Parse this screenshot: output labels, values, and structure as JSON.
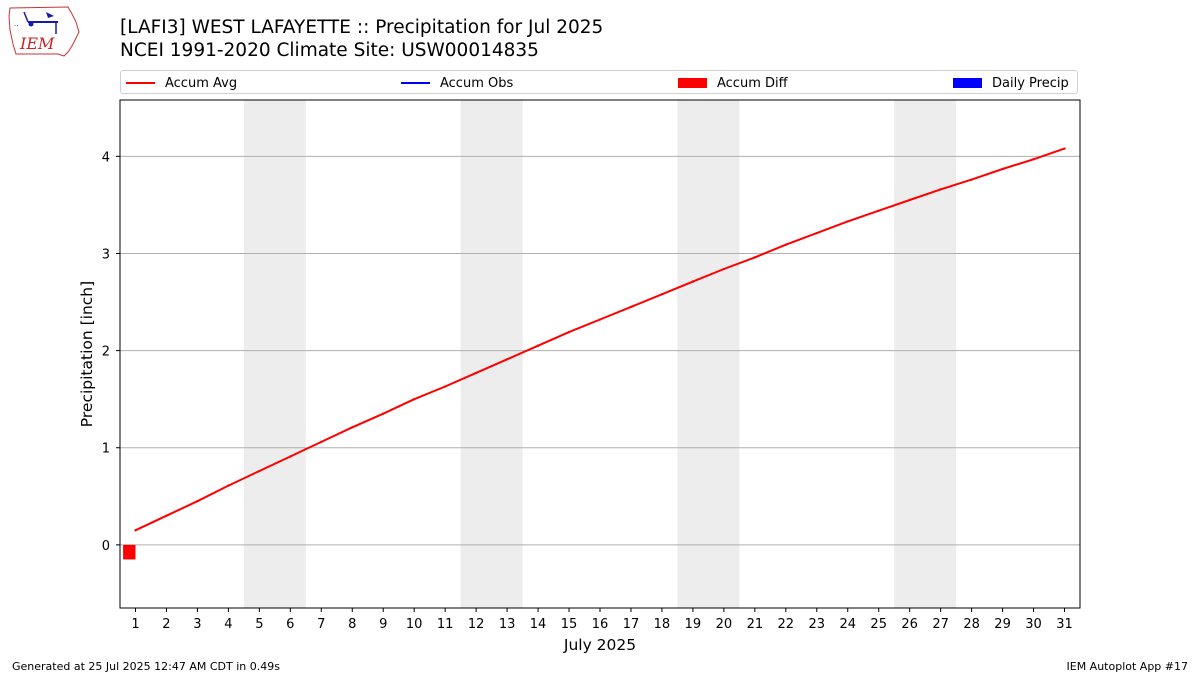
{
  "title_line1": "[LAFI3] WEST LAFAYETTE :: Precipitation for Jul 2025",
  "title_line2": "NCEI 1991-2020 Climate Site: USW00014835",
  "logo_text": "IEM",
  "footer_left": "Generated at 25 Jul 2025 12:47 AM CDT in 0.49s",
  "footer_right": "IEM Autoplot App #17",
  "colors": {
    "accum_avg": "#ff0000",
    "accum_obs": "#0000ff",
    "accum_diff": "#ff0000",
    "daily_precip": "#0000ff",
    "weekend_shade": "#ededed",
    "grid": "#b0b0b0"
  },
  "legend": [
    {
      "key": "accum_avg",
      "label": "Accum Avg",
      "kind": "line"
    },
    {
      "key": "accum_obs",
      "label": "Accum Obs",
      "kind": "line"
    },
    {
      "key": "accum_diff",
      "label": "Accum Diff",
      "kind": "box"
    },
    {
      "key": "daily_precip",
      "label": "Daily Precip",
      "kind": "box"
    }
  ],
  "chart_data": {
    "type": "line",
    "xlabel": "July 2025",
    "ylabel": "Precipitation [inch]",
    "xlim": [
      0.5,
      31.5
    ],
    "ylim": [
      -0.65,
      4.58
    ],
    "x_ticks": [
      1,
      2,
      3,
      4,
      5,
      6,
      7,
      8,
      9,
      10,
      11,
      12,
      13,
      14,
      15,
      16,
      17,
      18,
      19,
      20,
      21,
      22,
      23,
      24,
      25,
      26,
      27,
      28,
      29,
      30,
      31
    ],
    "y_ticks": [
      0,
      1,
      2,
      3,
      4
    ],
    "grid": "y",
    "legend_position": "top",
    "weekend_shading": [
      [
        4.5,
        6.5
      ],
      [
        11.5,
        13.5
      ],
      [
        18.5,
        20.5
      ],
      [
        25.5,
        27.5
      ]
    ],
    "series": [
      {
        "name": "Accum Avg",
        "type": "line",
        "x": [
          1,
          2,
          3,
          4,
          5,
          6,
          7,
          8,
          9,
          10,
          11,
          12,
          13,
          14,
          15,
          16,
          17,
          18,
          19,
          20,
          21,
          22,
          23,
          24,
          25,
          26,
          27,
          28,
          29,
          30,
          31
        ],
        "values": [
          0.15,
          0.3,
          0.45,
          0.61,
          0.76,
          0.91,
          1.06,
          1.21,
          1.35,
          1.5,
          1.63,
          1.77,
          1.91,
          2.05,
          2.19,
          2.32,
          2.45,
          2.58,
          2.71,
          2.84,
          2.96,
          3.09,
          3.21,
          3.33,
          3.44,
          3.55,
          3.66,
          3.76,
          3.87,
          3.97,
          4.08
        ]
      },
      {
        "name": "Accum Diff",
        "type": "bar",
        "x": [
          1
        ],
        "values": [
          -0.15
        ]
      }
    ]
  }
}
